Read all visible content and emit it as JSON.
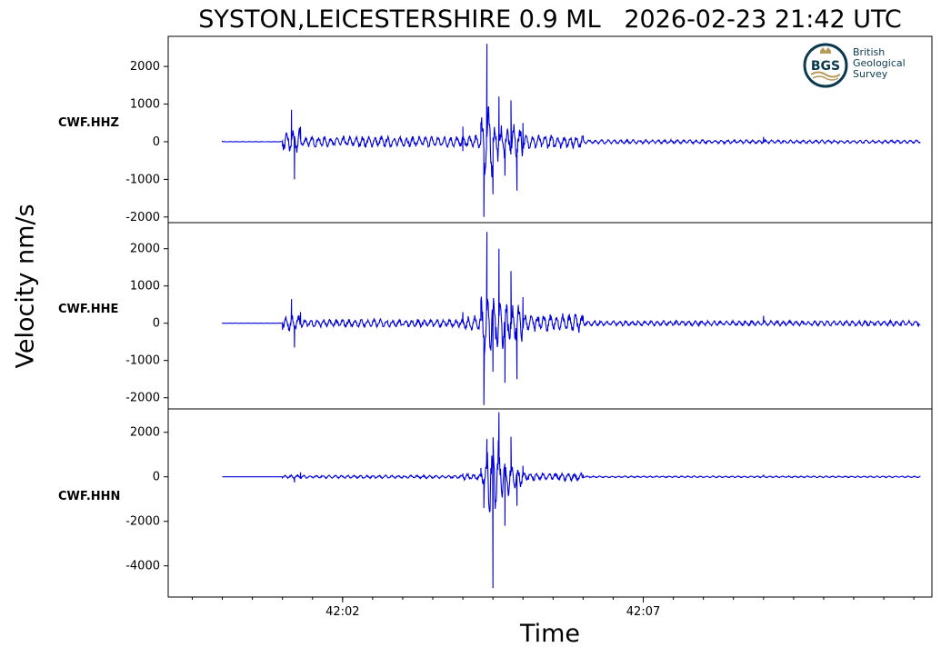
{
  "title": "SYSTON,LEICESTERSHIRE 0.9 ML   2026-02-23 21:42 UTC",
  "logo": {
    "lines": [
      "British",
      "Geological",
      "Survey"
    ],
    "mark_text": "BGS",
    "colors": {
      "ring": "#0b3a4f",
      "wave": "#b89a5a",
      "text": "#0b3a4f"
    }
  },
  "chart_data": {
    "type": "line",
    "ylabel": "Velocity nm/s",
    "xlabel": "Time",
    "line_color": "#0000dd",
    "x_range_seconds": [
      -0.9,
      11.8
    ],
    "x_tick_labels": [
      {
        "t": 2,
        "label": "42:02"
      },
      {
        "t": 7,
        "label": "42:07"
      }
    ],
    "x_minor_tick_interval_seconds": 0.5,
    "panels": [
      {
        "channel": "CWF.HHZ",
        "ylim": [
          -2150,
          2800
        ],
        "yticks": [
          2000,
          1000,
          0,
          -1000,
          -2000
        ],
        "samples_approx": [
          {
            "t": 0.0,
            "v": 10
          },
          {
            "t": 1.0,
            "v": 20
          },
          {
            "t": 1.15,
            "v": 850
          },
          {
            "t": 1.2,
            "v": -1000
          },
          {
            "t": 1.3,
            "v": 400
          },
          {
            "t": 4.0,
            "v": -250
          },
          {
            "t": 4.0,
            "v": 400
          },
          {
            "t": 4.3,
            "v": 500
          },
          {
            "t": 4.35,
            "v": -2000
          },
          {
            "t": 4.4,
            "v": 2600
          },
          {
            "t": 4.5,
            "v": -1400
          },
          {
            "t": 4.6,
            "v": 1200
          },
          {
            "t": 4.7,
            "v": -900
          },
          {
            "t": 4.8,
            "v": 1100
          },
          {
            "t": 4.9,
            "v": -1300
          },
          {
            "t": 5.0,
            "v": 500
          },
          {
            "t": 6.0,
            "v": 150
          },
          {
            "t": 9.0,
            "v": 130
          },
          {
            "t": 11.6,
            "v": 0
          }
        ]
      },
      {
        "channel": "CWF.HHE",
        "ylim": [
          -2300,
          2700
        ],
        "yticks": [
          2000,
          1000,
          0,
          -1000,
          -2000
        ],
        "samples_approx": [
          {
            "t": 0.0,
            "v": 0
          },
          {
            "t": 1.0,
            "v": 10
          },
          {
            "t": 1.15,
            "v": 650
          },
          {
            "t": 1.2,
            "v": -650
          },
          {
            "t": 1.3,
            "v": 300
          },
          {
            "t": 4.0,
            "v": 300
          },
          {
            "t": 4.3,
            "v": 600
          },
          {
            "t": 4.35,
            "v": -2200
          },
          {
            "t": 4.4,
            "v": 2450
          },
          {
            "t": 4.5,
            "v": -1300
          },
          {
            "t": 4.6,
            "v": 2000
          },
          {
            "t": 4.7,
            "v": -1600
          },
          {
            "t": 4.8,
            "v": 1400
          },
          {
            "t": 4.9,
            "v": -1500
          },
          {
            "t": 5.0,
            "v": 700
          },
          {
            "t": 6.0,
            "v": 200
          },
          {
            "t": 9.0,
            "v": 200
          },
          {
            "t": 11.6,
            "v": -50
          }
        ]
      },
      {
        "channel": "CWF.HHN",
        "ylim": [
          -5400,
          3050
        ],
        "yticks": [
          2000,
          0,
          -2000,
          -4000
        ],
        "samples_approx": [
          {
            "t": 0.0,
            "v": 0
          },
          {
            "t": 1.0,
            "v": 0
          },
          {
            "t": 1.2,
            "v": -250
          },
          {
            "t": 1.3,
            "v": 200
          },
          {
            "t": 4.0,
            "v": 150
          },
          {
            "t": 4.3,
            "v": 400
          },
          {
            "t": 4.35,
            "v": -1400
          },
          {
            "t": 4.4,
            "v": 1700
          },
          {
            "t": 4.5,
            "v": -5000
          },
          {
            "t": 4.6,
            "v": 2900
          },
          {
            "t": 4.7,
            "v": -2200
          },
          {
            "t": 4.8,
            "v": 1800
          },
          {
            "t": 4.9,
            "v": -1300
          },
          {
            "t": 5.0,
            "v": 500
          },
          {
            "t": 6.0,
            "v": 100
          },
          {
            "t": 9.0,
            "v": 100
          },
          {
            "t": 11.6,
            "v": 0
          }
        ]
      }
    ]
  }
}
